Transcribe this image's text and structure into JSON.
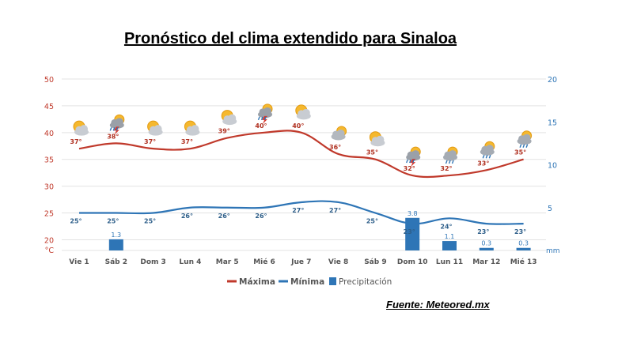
{
  "title": "Pronóstico del clima extendido para Sinaloa",
  "source": "Fuente: Meteored.mx",
  "chart_data": {
    "type": "line",
    "categories": [
      "Vie 1",
      "Sáb 2",
      "Dom 3",
      "Lun 4",
      "Mar 5",
      "Mié 6",
      "Jue 7",
      "Vie 8",
      "Sáb 9",
      "Dom 10",
      "Lun 11",
      "Mar 12",
      "Mié 13"
    ],
    "y_left": {
      "unit": "°C",
      "ticks": [
        20,
        25,
        30,
        35,
        40,
        45,
        50
      ],
      "ylim": [
        18,
        50
      ]
    },
    "y_right": {
      "unit": "mm",
      "ticks": [
        5,
        10,
        15,
        20
      ],
      "ylim": [
        0,
        20
      ]
    },
    "series": [
      {
        "name": "Máxima",
        "type": "line",
        "color": "#c0392b",
        "axis": "left",
        "values": [
          37,
          38,
          37,
          37,
          39,
          40,
          40,
          36,
          35,
          32,
          32,
          33,
          35
        ],
        "labels": [
          "37°",
          "38°",
          "37°",
          "37°",
          "39°",
          "40°",
          "40°",
          "36°",
          "35°",
          "32°",
          "32°",
          "33°",
          "35°"
        ]
      },
      {
        "name": "Mínima",
        "type": "line",
        "color": "#2e75b6",
        "axis": "left",
        "values": [
          25,
          25,
          25,
          26,
          26,
          26,
          27,
          27,
          25,
          23,
          24,
          23,
          23
        ],
        "labels": [
          "25°",
          "25°",
          "25°",
          "26°",
          "26°",
          "26°",
          "27°",
          "27°",
          "25°",
          "23°",
          "24°",
          "23°",
          "23°"
        ]
      },
      {
        "name": "Precipitación",
        "type": "bar",
        "color": "#2e75b6",
        "axis": "right",
        "values": [
          0,
          1.3,
          0,
          0,
          0,
          0,
          0,
          0,
          0,
          3.8,
          1.1,
          0.3,
          0.3
        ],
        "labels": [
          "",
          "1.3",
          "",
          "",
          "",
          "",
          "",
          "",
          "",
          "3.8",
          "1.1",
          "0.3",
          "0.3"
        ]
      }
    ],
    "weather_icons": [
      "sun-cloud",
      "storm",
      "sun-cloud",
      "sun-cloud",
      "sun-cloud",
      "storm",
      "sun-cloud",
      "cloudy",
      "sun-cloud",
      "storm",
      "rain",
      "rain",
      "rain"
    ],
    "legend_position": "bottom",
    "grid": true
  }
}
